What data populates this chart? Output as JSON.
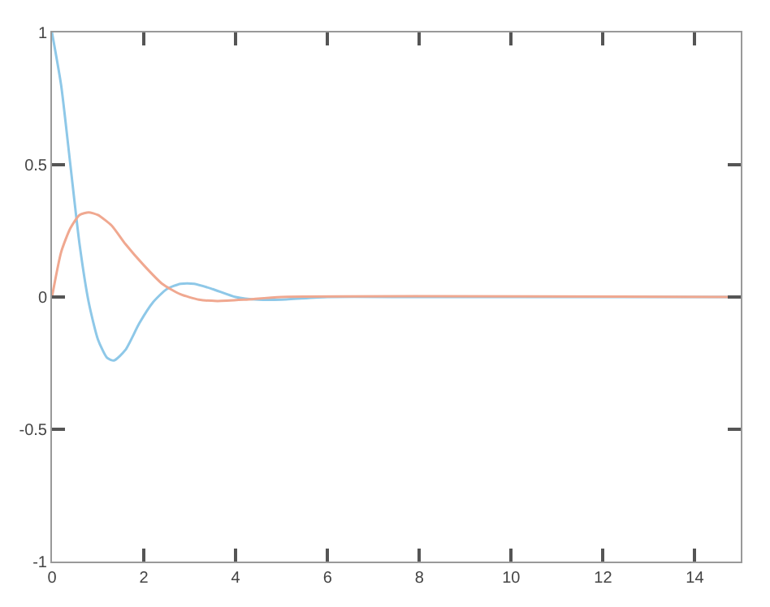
{
  "chart_data": {
    "type": "line",
    "xlim": [
      0,
      15
    ],
    "ylim": [
      -1,
      1
    ],
    "xticks": [
      0,
      2,
      4,
      6,
      8,
      10,
      12,
      14
    ],
    "yticks": [
      -1,
      -0.5,
      0,
      0.5,
      1
    ],
    "marker": "none",
    "line_style": "solid",
    "series": [
      {
        "color": "#8ec8e8",
        "x": [
          0,
          0.2,
          0.4,
          0.6,
          0.8,
          1.0,
          1.2,
          1.35,
          1.6,
          1.9,
          2.2,
          2.5,
          2.8,
          3.1,
          3.5,
          4.0,
          4.5,
          5,
          6,
          8,
          15
        ],
        "values": [
          1,
          0.8,
          0.5,
          0.2,
          -0.02,
          -0.16,
          -0.23,
          -0.24,
          -0.2,
          -0.1,
          -0.02,
          0.03,
          0.05,
          0.05,
          0.03,
          0.0,
          -0.01,
          -0.01,
          0,
          0,
          0
        ]
      },
      {
        "color": "#f0a890",
        "x": [
          0,
          0.2,
          0.4,
          0.6,
          0.8,
          1.0,
          1.3,
          1.6,
          2.0,
          2.4,
          2.8,
          3.2,
          3.6,
          4.2,
          5,
          15
        ],
        "values": [
          0,
          0.17,
          0.26,
          0.31,
          0.32,
          0.31,
          0.27,
          0.2,
          0.12,
          0.05,
          0.01,
          -0.01,
          -0.015,
          -0.01,
          0,
          0
        ]
      }
    ]
  }
}
